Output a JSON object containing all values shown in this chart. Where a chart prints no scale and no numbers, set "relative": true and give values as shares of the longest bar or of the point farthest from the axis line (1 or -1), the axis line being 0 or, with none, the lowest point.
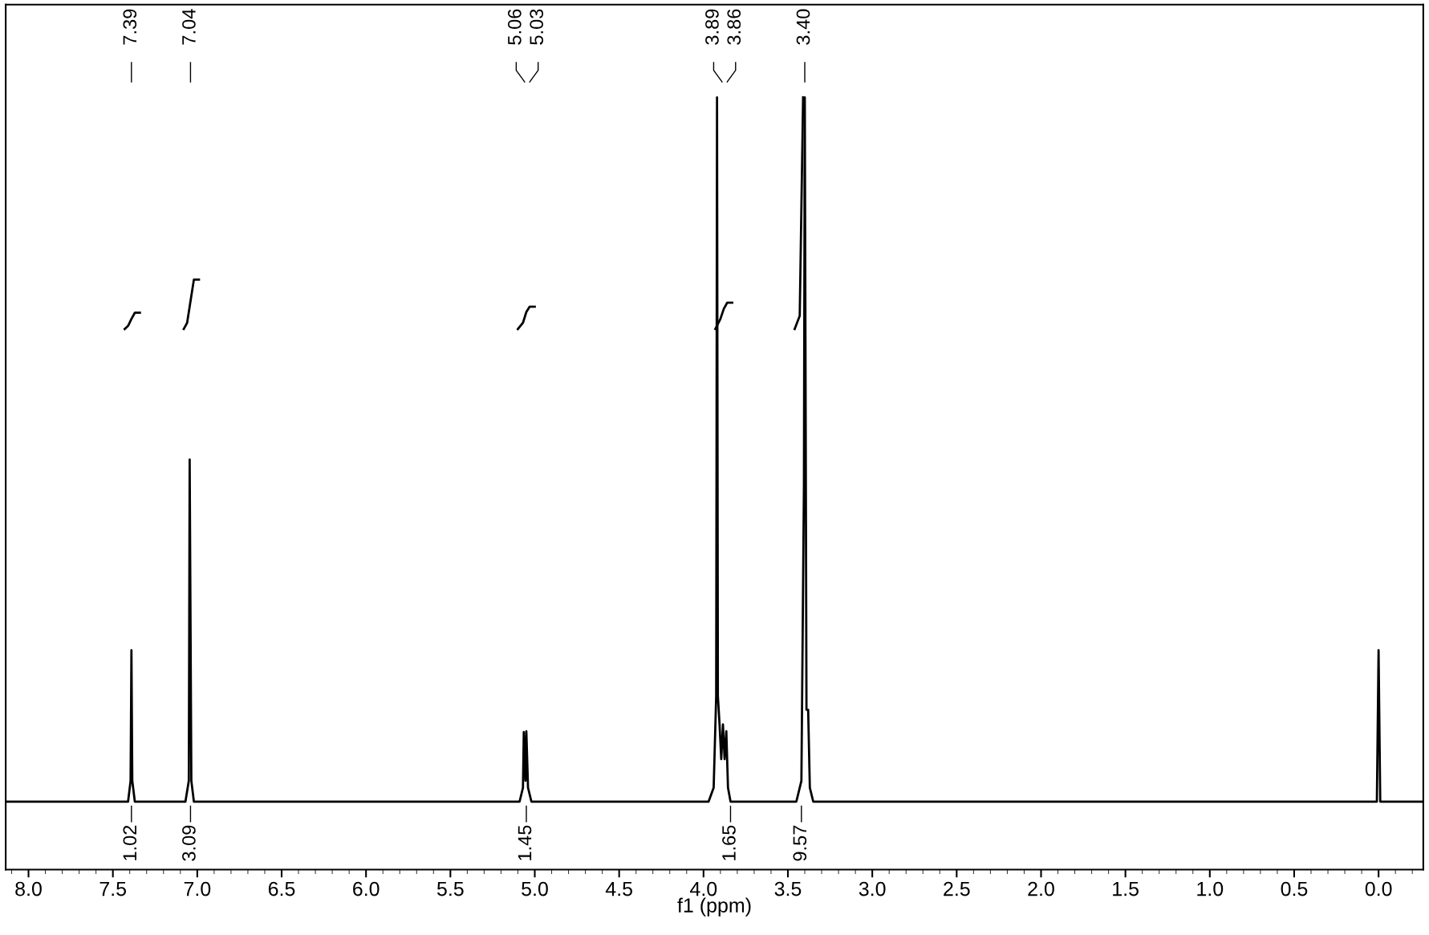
{
  "chart_data": {
    "type": "line",
    "relative": true,
    "xlabel": "f1 (ppm)",
    "xlim": [
      8.135,
      -0.265
    ],
    "xticks": [
      {
        "value": 8,
        "label": "8.0"
      },
      7.5,
      {
        "value": 7,
        "label": "7.0"
      },
      6.5,
      {
        "value": 6,
        "label": "6.0"
      },
      5.5,
      {
        "value": 5,
        "label": "5.0"
      },
      4.5,
      {
        "value": 4,
        "label": "4.0"
      },
      3.5,
      {
        "value": 3,
        "label": "3.0"
      },
      2.5,
      {
        "value": 2,
        "label": "2.0"
      },
      1.5,
      {
        "value": 1,
        "label": "1.0"
      },
      0.5,
      {
        "value": 0,
        "label": "0.0"
      }
    ],
    "tick_labels": "x",
    "grid": false,
    "series": [
      {
        "color": "#000000",
        "x": [
          8.135,
          7.41,
          7.395,
          7.39,
          7.385,
          7.37,
          7.07,
          7.05,
          7.045,
          7.035,
          7.02,
          5.09,
          5.07,
          5.065,
          5.055,
          5.05,
          5.04,
          5.02,
          3.97,
          3.94,
          3.925,
          3.92,
          3.915,
          3.905,
          3.895,
          3.885,
          3.875,
          3.865,
          3.855,
          3.84,
          3.45,
          3.42,
          3.405,
          3.4,
          3.39,
          3.38,
          3.37,
          3.35,
          0.01,
          0.0,
          -0.01,
          -0.265
        ],
        "values": [
          0.088,
          0.088,
          0.115,
          0.284,
          0.115,
          0.088,
          0.088,
          0.115,
          0.531,
          0.115,
          0.088,
          0.088,
          0.106,
          0.178,
          0.115,
          0.179,
          0.106,
          0.088,
          0.088,
          0.106,
          0.225,
          1,
          0.225,
          0.188,
          0.143,
          0.188,
          0.143,
          0.179,
          0.106,
          0.088,
          0.088,
          0.115,
          0.498,
          1,
          0.207,
          0.207,
          0.106,
          0.088,
          0.088,
          0.284,
          0.088,
          0.088
        ]
      },
      {
        "color": "#000000",
        "x": [
          7.43,
          7.41,
          7.39,
          7.37,
          7.34,
          7.33,
          7.08,
          7.06,
          7.04,
          7.02,
          6.99,
          6.98,
          5.1,
          5.07,
          5.05,
          5.03,
          5.0,
          4.99,
          3.93,
          3.9,
          3.88,
          3.86,
          3.83,
          3.82,
          3.46,
          3.43,
          3.41
        ],
        "values": [
          0.7,
          0.704,
          0.713,
          0.721,
          0.721,
          null,
          0.7,
          0.708,
          0.736,
          0.764,
          0.764,
          null,
          0.7,
          0.708,
          0.722,
          0.729,
          0.729,
          null,
          0.7,
          0.713,
          0.726,
          0.734,
          0.734,
          null,
          0.7,
          0.717,
          1
        ]
      }
    ],
    "annotations": [
      {
        "text": "7.39",
        "x": 7.39
      },
      {
        "text": "7.04",
        "x": 7.04
      },
      {
        "text": "5.06",
        "x": 5.06
      },
      {
        "text": "5.03",
        "x": 5.03
      },
      {
        "text": "3.89",
        "x": 3.89
      },
      {
        "text": "3.86",
        "x": 3.86
      },
      {
        "text": "3.40",
        "x": 3.4
      },
      {
        "text": "1.02",
        "x": 7.39,
        "y": 0.088
      },
      {
        "text": "3.09",
        "x": 7.04,
        "y": 0.088
      },
      {
        "text": "1.45",
        "x": 5.05,
        "y": 0.088
      },
      {
        "text": "1.65",
        "x": 3.84,
        "y": 0.088
      },
      {
        "text": "9.57",
        "x": 3.42,
        "y": 0.088
      }
    ]
  }
}
